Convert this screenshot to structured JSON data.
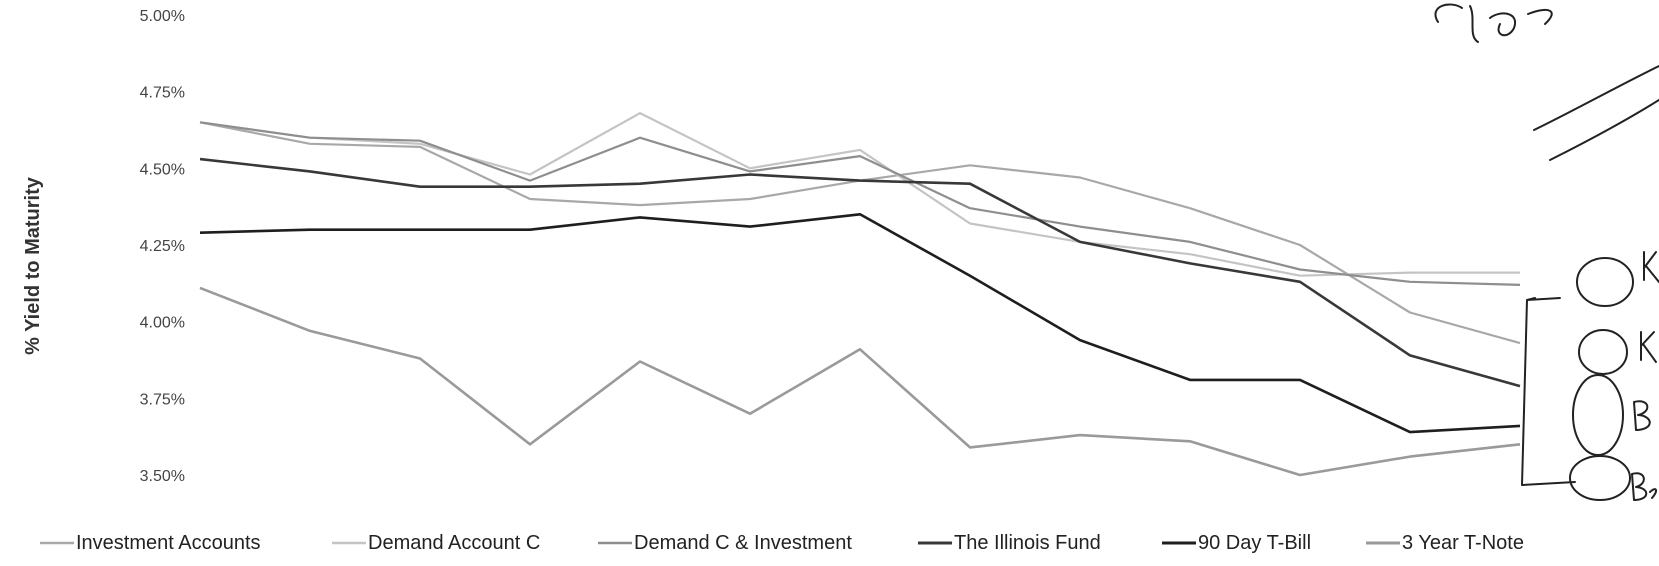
{
  "chart_data": {
    "type": "line",
    "title": "",
    "xlabel": "",
    "ylabel": "% Yield to Maturity",
    "ylim": [
      3.5,
      5.0
    ],
    "yticks": [
      "3.50%",
      "3.75%",
      "4.00%",
      "4.25%",
      "4.50%",
      "4.75%",
      "5.00%"
    ],
    "ytick_values": [
      3.5,
      3.75,
      4.0,
      4.25,
      4.5,
      4.75,
      5.0
    ],
    "grid": false,
    "legend_position": "bottom",
    "n_points": 13,
    "series": [
      {
        "name": "Investment Accounts",
        "color": "#a8a8a8",
        "values": [
          4.65,
          4.58,
          4.57,
          4.4,
          4.38,
          4.4,
          4.46,
          4.51,
          4.47,
          4.37,
          4.25,
          4.03,
          3.93
        ]
      },
      {
        "name": "Demand Account C",
        "color": "#c4c4c4",
        "values": [
          4.65,
          4.6,
          4.58,
          4.48,
          4.68,
          4.5,
          4.56,
          4.32,
          4.26,
          4.22,
          4.15,
          4.16,
          4.16
        ]
      },
      {
        "name": "Demand C & Investment",
        "color": "#8e8e8e",
        "values": [
          4.65,
          4.6,
          4.59,
          4.46,
          4.6,
          4.49,
          4.54,
          4.37,
          4.31,
          4.26,
          4.17,
          4.13,
          4.12
        ]
      },
      {
        "name": "The Illinois Fund",
        "color": "#383838",
        "values": [
          4.53,
          4.49,
          4.44,
          4.44,
          4.45,
          4.48,
          4.46,
          4.45,
          4.26,
          4.19,
          4.13,
          3.89,
          3.79
        ]
      },
      {
        "name": "90 Day T-Bill",
        "color": "#1e1e1e",
        "values": [
          4.29,
          4.3,
          4.3,
          4.3,
          4.34,
          4.31,
          4.35,
          4.15,
          3.94,
          3.81,
          3.81,
          3.64,
          3.66
        ]
      },
      {
        "name": "3 Year T-Note",
        "color": "#9a9a9a",
        "values": [
          4.11,
          3.97,
          3.88,
          3.6,
          3.87,
          3.7,
          3.91,
          3.59,
          3.63,
          3.61,
          3.5,
          3.56,
          3.6
        ]
      }
    ]
  },
  "annotations": {
    "handwriting_top": "Bex",
    "handwriting_right": [
      "K",
      "K",
      "B",
      "Be"
    ]
  }
}
